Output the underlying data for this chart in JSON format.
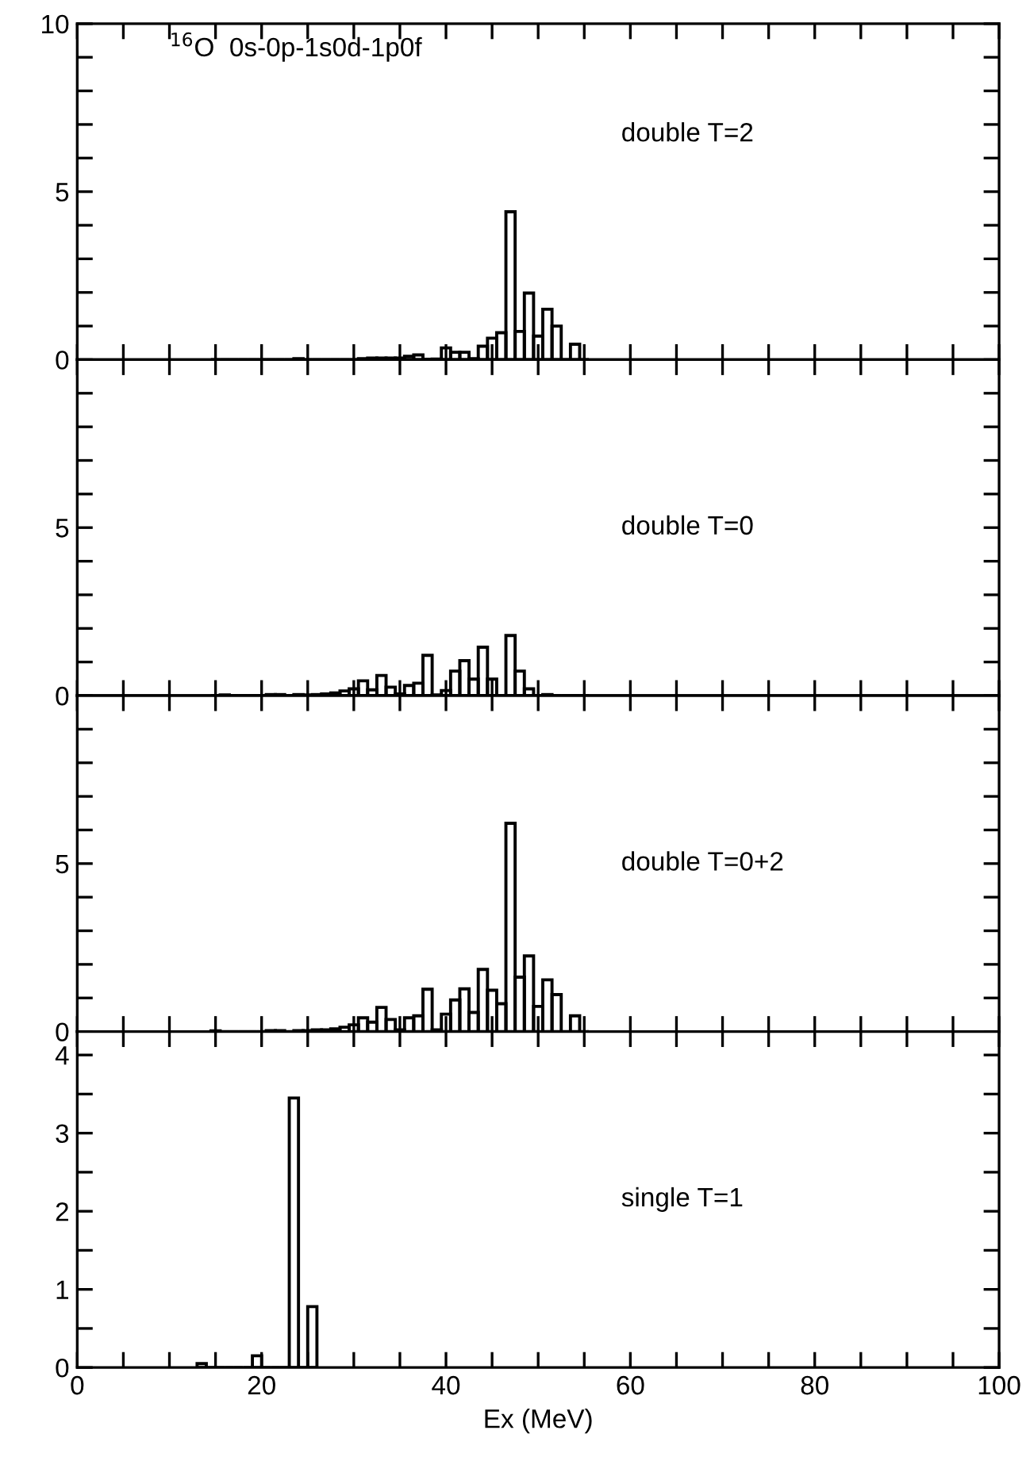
{
  "chart_data": [
    {
      "type": "histogram",
      "annotations": [
        "$^{16}$O  0s-0p-1s0d-1p0f",
        "double T=2"
      ],
      "color": "#000000",
      "xlim": [
        0,
        100
      ],
      "ylim": [
        0,
        10
      ],
      "tick_labels": "y",
      "xticks": [
        {
          "value": 0,
          "label": null
        },
        {
          "value": 5,
          "label": null
        },
        {
          "value": 10,
          "label": null
        },
        {
          "value": 15,
          "label": null
        },
        {
          "value": 20,
          "label": null
        },
        {
          "value": 25,
          "label": null
        },
        {
          "value": 30,
          "label": null
        },
        {
          "value": 35,
          "label": null
        },
        {
          "value": 40,
          "label": null
        },
        {
          "value": 45,
          "label": null
        },
        {
          "value": 50,
          "label": null
        },
        {
          "value": 55,
          "label": null
        },
        {
          "value": 60,
          "label": null
        },
        {
          "value": 65,
          "label": null
        },
        {
          "value": 70,
          "label": null
        },
        {
          "value": 75,
          "label": null
        },
        {
          "value": 80,
          "label": null
        },
        {
          "value": 85,
          "label": null
        },
        {
          "value": 90,
          "label": null
        },
        {
          "value": 95,
          "label": null
        },
        {
          "value": 100,
          "label": null
        }
      ],
      "yticks": [
        0,
        {
          "value": 1,
          "label": null
        },
        {
          "value": 2,
          "label": null
        },
        {
          "value": 3,
          "label": null
        },
        {
          "value": 4,
          "label": null
        },
        5,
        {
          "value": 6,
          "label": null
        },
        {
          "value": 7,
          "label": null
        },
        {
          "value": 8,
          "label": null
        },
        {
          "value": 9,
          "label": null
        },
        10
      ],
      "bins": [
        14.5,
        15.5,
        16.5,
        17.5,
        18.5,
        19.5,
        20.5,
        21.5,
        22.5,
        23.5,
        24.5,
        25.5,
        26.5,
        27.5,
        28.5,
        29.5,
        30.5,
        31.5,
        32.5,
        33.5,
        34.5,
        35.5,
        36.5,
        37.5,
        38.5,
        39.5,
        40.5,
        41.5,
        42.5,
        43.5,
        44.5,
        45.5,
        46.5,
        47.5,
        48.5,
        49.5,
        50.5,
        51.5,
        52.5,
        53.5,
        54.5,
        55.5
      ],
      "values": [
        0,
        0,
        0,
        0,
        0,
        0,
        0,
        0,
        0,
        0.03,
        0,
        0,
        0,
        0,
        0,
        0,
        0.03,
        0.05,
        0.05,
        0.05,
        0.05,
        0.1,
        0.14,
        0.01,
        0.02,
        0.35,
        0.22,
        0.22,
        0.03,
        0.4,
        0.64,
        0.8,
        4.4,
        0.84,
        1.98,
        0.7,
        1.5,
        1.0,
        0,
        0.46,
        0
      ]
    },
    {
      "type": "histogram",
      "annotations": [
        "double T=0"
      ],
      "color": "#000000",
      "xlim": [
        0,
        100
      ],
      "ylim": [
        0,
        10
      ],
      "tick_labels": "y",
      "xticks": [
        {
          "value": 0,
          "label": null
        },
        {
          "value": 5,
          "label": null
        },
        {
          "value": 10,
          "label": null
        },
        {
          "value": 15,
          "label": null
        },
        {
          "value": 20,
          "label": null
        },
        {
          "value": 25,
          "label": null
        },
        {
          "value": 30,
          "label": null
        },
        {
          "value": 35,
          "label": null
        },
        {
          "value": 40,
          "label": null
        },
        {
          "value": 45,
          "label": null
        },
        {
          "value": 50,
          "label": null
        },
        {
          "value": 55,
          "label": null
        },
        {
          "value": 60,
          "label": null
        },
        {
          "value": 65,
          "label": null
        },
        {
          "value": 70,
          "label": null
        },
        {
          "value": 75,
          "label": null
        },
        {
          "value": 80,
          "label": null
        },
        {
          "value": 85,
          "label": null
        },
        {
          "value": 90,
          "label": null
        },
        {
          "value": 95,
          "label": null
        },
        {
          "value": 100,
          "label": null
        }
      ],
      "yticks": [
        0,
        {
          "value": 1,
          "label": null
        },
        {
          "value": 2,
          "label": null
        },
        {
          "value": 3,
          "label": null
        },
        {
          "value": 4,
          "label": null
        },
        5,
        {
          "value": 6,
          "label": null
        },
        {
          "value": 7,
          "label": null
        },
        {
          "value": 8,
          "label": null
        },
        {
          "value": 9,
          "label": null
        }
      ],
      "bins": [
        14.5,
        15.5,
        16.5,
        17.5,
        18.5,
        19.5,
        20.5,
        21.5,
        22.5,
        23.5,
        24.5,
        25.5,
        26.5,
        27.5,
        28.5,
        29.5,
        30.5,
        31.5,
        32.5,
        33.5,
        34.5,
        35.5,
        36.5,
        37.5,
        38.5,
        39.5,
        40.5,
        41.5,
        42.5,
        43.5,
        44.5,
        45.5,
        46.5,
        47.5,
        48.5,
        49.5,
        50.5,
        51.5,
        52.5,
        53.5,
        54.5,
        55.5
      ],
      "values": [
        0,
        0.02,
        0,
        0,
        0,
        0,
        0.03,
        0.03,
        0,
        0.03,
        0.02,
        0.03,
        0.05,
        0.08,
        0.14,
        0.2,
        0.44,
        0.17,
        0.6,
        0.25,
        0.05,
        0.3,
        0.37,
        1.2,
        0.02,
        0.15,
        0.73,
        1.04,
        0.49,
        1.44,
        0.49,
        0,
        1.79,
        0.73,
        0.2,
        0,
        0.03,
        0,
        0,
        0,
        0
      ]
    },
    {
      "type": "histogram",
      "annotations": [
        "double T=0+2"
      ],
      "color": "#000000",
      "xlim": [
        0,
        100
      ],
      "ylim": [
        0,
        10
      ],
      "tick_labels": "y",
      "xticks": [
        {
          "value": 0,
          "label": null
        },
        {
          "value": 5,
          "label": null
        },
        {
          "value": 10,
          "label": null
        },
        {
          "value": 15,
          "label": null
        },
        {
          "value": 20,
          "label": null
        },
        {
          "value": 25,
          "label": null
        },
        {
          "value": 30,
          "label": null
        },
        {
          "value": 35,
          "label": null
        },
        {
          "value": 40,
          "label": null
        },
        {
          "value": 45,
          "label": null
        },
        {
          "value": 50,
          "label": null
        },
        {
          "value": 55,
          "label": null
        },
        {
          "value": 60,
          "label": null
        },
        {
          "value": 65,
          "label": null
        },
        {
          "value": 70,
          "label": null
        },
        {
          "value": 75,
          "label": null
        },
        {
          "value": 80,
          "label": null
        },
        {
          "value": 85,
          "label": null
        },
        {
          "value": 90,
          "label": null
        },
        {
          "value": 95,
          "label": null
        },
        {
          "value": 100,
          "label": null
        }
      ],
      "yticks": [
        0,
        {
          "value": 1,
          "label": null
        },
        {
          "value": 2,
          "label": null
        },
        {
          "value": 3,
          "label": null
        },
        {
          "value": 4,
          "label": null
        },
        5,
        {
          "value": 6,
          "label": null
        },
        {
          "value": 7,
          "label": null
        },
        {
          "value": 8,
          "label": null
        },
        {
          "value": 9,
          "label": null
        }
      ],
      "bins": [
        14.5,
        15.5,
        16.5,
        17.5,
        18.5,
        19.5,
        20.5,
        21.5,
        22.5,
        23.5,
        24.5,
        25.5,
        26.5,
        27.5,
        28.5,
        29.5,
        30.5,
        31.5,
        32.5,
        33.5,
        34.5,
        35.5,
        36.5,
        37.5,
        38.5,
        39.5,
        40.5,
        41.5,
        42.5,
        43.5,
        44.5,
        45.5,
        46.5,
        47.5,
        48.5,
        49.5,
        50.5,
        51.5,
        52.5,
        53.5,
        54.5,
        55.5
      ],
      "values": [
        0.02,
        0,
        0,
        0,
        0,
        0,
        0.03,
        0.03,
        0,
        0.03,
        0.03,
        0.05,
        0.05,
        0.08,
        0.13,
        0.2,
        0.41,
        0.28,
        0.72,
        0.36,
        0.05,
        0.41,
        0.47,
        1.26,
        0.05,
        0.52,
        0.94,
        1.27,
        0.57,
        1.85,
        1.23,
        0.83,
        6.2,
        1.62,
        2.25,
        0.75,
        1.54,
        1.1,
        0,
        0.47,
        0
      ]
    },
    {
      "type": "histogram",
      "annotations": [
        "single T=1"
      ],
      "color": "#000000",
      "xlim": [
        0,
        100
      ],
      "ylim": [
        0,
        4.3
      ],
      "xlabel": "Ex (MeV)",
      "xticks": [
        0,
        {
          "value": 5,
          "label": null
        },
        {
          "value": 10,
          "label": null
        },
        {
          "value": 15,
          "label": null
        },
        20,
        {
          "value": 25,
          "label": null
        },
        {
          "value": 30,
          "label": null
        },
        {
          "value": 35,
          "label": null
        },
        40,
        {
          "value": 45,
          "label": null
        },
        {
          "value": 50,
          "label": null
        },
        {
          "value": 55,
          "label": null
        },
        60,
        {
          "value": 65,
          "label": null
        },
        {
          "value": 70,
          "label": null
        },
        {
          "value": 75,
          "label": null
        },
        80,
        {
          "value": 85,
          "label": null
        },
        {
          "value": 90,
          "label": null
        },
        {
          "value": 95,
          "label": null
        },
        100
      ],
      "yticks": [
        0,
        {
          "value": 0.5,
          "label": null
        },
        1,
        {
          "value": 1.5,
          "label": null
        },
        2,
        {
          "value": 2.5,
          "label": null
        },
        3,
        {
          "value": 3.5,
          "label": null
        },
        4
      ],
      "bins": [
        13,
        14,
        15,
        16,
        17,
        18,
        19,
        20,
        21,
        22,
        23,
        24,
        25,
        26
      ],
      "values": [
        0.05,
        0,
        0,
        0,
        0,
        0,
        0.15,
        0,
        0,
        0,
        3.45,
        0,
        0.78
      ]
    }
  ]
}
